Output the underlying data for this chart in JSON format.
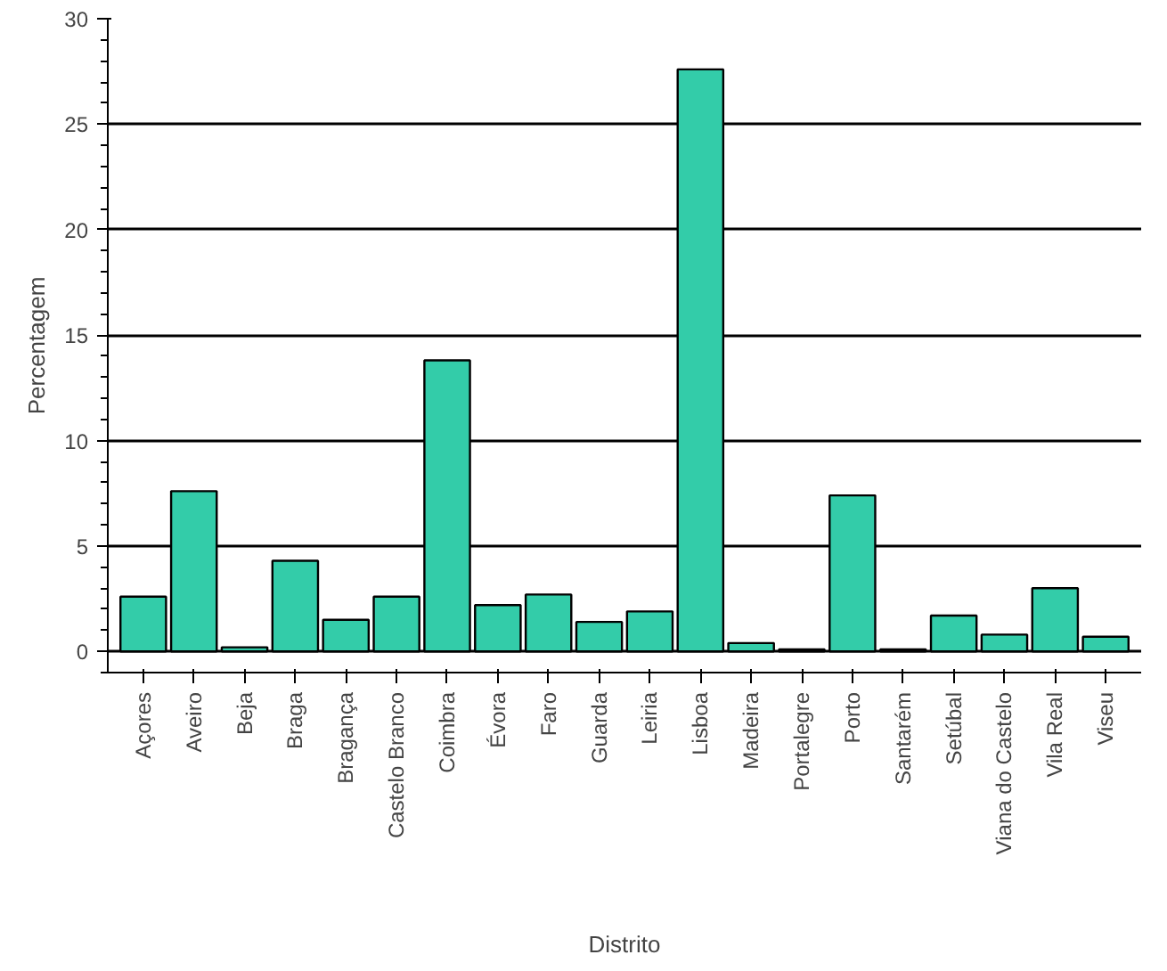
{
  "chart_data": {
    "type": "bar",
    "xlabel": "Distrito",
    "ylabel": "Percentagem",
    "categories": [
      "Açores",
      "Aveiro",
      "Beja",
      "Braga",
      "Bragança",
      "Castelo Branco",
      "Coimbra",
      "Évora",
      "Faro",
      "Guarda",
      "Leiria",
      "Lisboa",
      "Madeira",
      "Portalegre",
      "Porto",
      "Santarém",
      "Setúbal",
      "Viana do Castelo",
      "Vila Real",
      "Viseu"
    ],
    "values": [
      2.6,
      7.6,
      0.2,
      4.3,
      1.5,
      2.6,
      13.8,
      2.2,
      2.7,
      1.4,
      1.9,
      27.6,
      0.4,
      0.1,
      7.4,
      0.1,
      1.7,
      0.8,
      3.0,
      0.7
    ],
    "color": "#33cca9",
    "ylim": [
      -1,
      30
    ],
    "yticks": [
      0,
      5,
      10,
      15,
      20,
      25,
      30
    ],
    "grid": "y"
  }
}
